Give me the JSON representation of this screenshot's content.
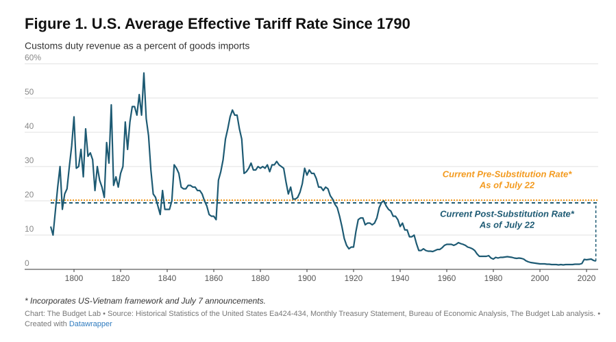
{
  "chart_data": {
    "type": "line",
    "title": "Figure 1. U.S. Average Effective Tariff Rate Since 1790",
    "subtitle": "Customs duty revenue as a percent of goods imports",
    "x": [
      1790,
      1791,
      1792,
      1793,
      1794,
      1795,
      1796,
      1797,
      1798,
      1799,
      1800,
      1801,
      1802,
      1803,
      1804,
      1805,
      1806,
      1807,
      1808,
      1809,
      1810,
      1811,
      1812,
      1813,
      1814,
      1815,
      1816,
      1817,
      1818,
      1819,
      1820,
      1821,
      1822,
      1823,
      1824,
      1825,
      1826,
      1827,
      1828,
      1829,
      1830,
      1831,
      1832,
      1833,
      1834,
      1835,
      1836,
      1837,
      1838,
      1839,
      1840,
      1841,
      1842,
      1843,
      1844,
      1845,
      1846,
      1847,
      1848,
      1849,
      1850,
      1851,
      1852,
      1853,
      1854,
      1855,
      1856,
      1857,
      1858,
      1859,
      1860,
      1861,
      1862,
      1863,
      1864,
      1865,
      1866,
      1867,
      1868,
      1869,
      1870,
      1871,
      1872,
      1873,
      1874,
      1875,
      1876,
      1877,
      1878,
      1879,
      1880,
      1881,
      1882,
      1883,
      1884,
      1885,
      1886,
      1887,
      1888,
      1889,
      1890,
      1891,
      1892,
      1893,
      1894,
      1895,
      1896,
      1897,
      1898,
      1899,
      1900,
      1901,
      1902,
      1903,
      1904,
      1905,
      1906,
      1907,
      1908,
      1909,
      1910,
      1911,
      1912,
      1913,
      1914,
      1915,
      1916,
      1917,
      1918,
      1919,
      1920,
      1921,
      1922,
      1923,
      1924,
      1925,
      1926,
      1927,
      1928,
      1929,
      1930,
      1931,
      1932,
      1933,
      1934,
      1935,
      1936,
      1937,
      1938,
      1939,
      1940,
      1941,
      1942,
      1943,
      1944,
      1945,
      1946,
      1947,
      1948,
      1949,
      1950,
      1951,
      1952,
      1953,
      1954,
      1955,
      1956,
      1957,
      1958,
      1959,
      1960,
      1961,
      1962,
      1963,
      1964,
      1965,
      1966,
      1967,
      1968,
      1969,
      1970,
      1971,
      1972,
      1973,
      1974,
      1975,
      1976,
      1977,
      1978,
      1979,
      1980,
      1981,
      1982,
      1983,
      1984,
      1985,
      1986,
      1987,
      1988,
      1989,
      1990,
      1991,
      1992,
      1993,
      1994,
      1995,
      1996,
      1997,
      1998,
      1999,
      2000,
      2001,
      2002,
      2003,
      2004,
      2005,
      2006,
      2007,
      2008,
      2009,
      2010,
      2011,
      2012,
      2013,
      2014,
      2015,
      2016,
      2017,
      2018,
      2019,
      2020,
      2021,
      2022,
      2023,
      2024
    ],
    "values": [
      12.5,
      10,
      17,
      24,
      30,
      17.5,
      22,
      23.5,
      30,
      36,
      44.5,
      29.5,
      30,
      35,
      27,
      41,
      33,
      34,
      32,
      23,
      30,
      26,
      24,
      21,
      37,
      31,
      48,
      24.5,
      27,
      24,
      28,
      30,
      43,
      35,
      43,
      47.5,
      47.5,
      45,
      51,
      45,
      57.3,
      44,
      39,
      29,
      22,
      21,
      18.5,
      16,
      23,
      17.5,
      17.5,
      17.5,
      20,
      30.5,
      29.5,
      28,
      24,
      23.5,
      23.5,
      24.5,
      24.5,
      24,
      24,
      23,
      23,
      22,
      20,
      18.5,
      16,
      15.5,
      15.5,
      14.5,
      26,
      28.5,
      32,
      38,
      41,
      44.5,
      46.5,
      45,
      45,
      41,
      38,
      28,
      28.5,
      29.5,
      31,
      29,
      29,
      30,
      29.5,
      30,
      29.5,
      30.5,
      28.5,
      30.5,
      30.5,
      31.5,
      30.5,
      30,
      29.5,
      25.5,
      22,
      24,
      20.5,
      20.5,
      21,
      22.5,
      25,
      29.5,
      27.5,
      29,
      28,
      28,
      26.5,
      24,
      24,
      23,
      24,
      23.5,
      21.5,
      20.5,
      19,
      18,
      15.5,
      12.5,
      9,
      7,
      6,
      6.5,
      6.5,
      11,
      14.5,
      15,
      15,
      13,
      13.5,
      13.5,
      13,
      13.5,
      15,
      18,
      19.5,
      20,
      18.5,
      17.5,
      17,
      15.5,
      15.5,
      14.5,
      12.5,
      13.5,
      11.5,
      11.5,
      9.5,
      9.5,
      10,
      7.5,
      5.5,
      5.5,
      6,
      5.5,
      5.3,
      5.3,
      5.2,
      5.5,
      5.8,
      5.8,
      6.3,
      7,
      7.3,
      7.3,
      7.3,
      7,
      7.3,
      7.8,
      7.5,
      7.3,
      7,
      6.5,
      6.3,
      6,
      5.5,
      4.5,
      3.8,
      3.8,
      3.8,
      3.8,
      4,
      3.3,
      3,
      3.5,
      3.3,
      3.5,
      3.5,
      3.6,
      3.7,
      3.6,
      3.5,
      3.3,
      3.2,
      3.3,
      3.2,
      3,
      2.5,
      2.2,
      2,
      1.9,
      1.8,
      1.7,
      1.6,
      1.6,
      1.6,
      1.5,
      1.5,
      1.4,
      1.4,
      1.4,
      1.3,
      1.4,
      1.3,
      1.4,
      1.4,
      1.4,
      1.4,
      1.5,
      1.5,
      1.5,
      1.7,
      2.9,
      2.8,
      2.9,
      3,
      2.6,
      2.4
    ],
    "color": "#1d5a73",
    "xlim": [
      1790,
      2025
    ],
    "ylim": [
      0,
      60
    ],
    "xticks": [
      1800,
      1820,
      1840,
      1860,
      1880,
      1900,
      1920,
      1940,
      1960,
      1980,
      2000,
      2020
    ],
    "yticks": [
      0,
      10,
      20,
      30,
      40,
      50,
      {
        "value": 60,
        "label": "60%"
      }
    ],
    "grid": true,
    "reference_lines": [
      {
        "label": "Current Pre-Substitution Rate*",
        "sublabel": "As of July 22",
        "value": 20.2,
        "color": "#f39a1e",
        "style": "dotted"
      },
      {
        "label": "Current Post-Substitution Rate*",
        "sublabel": "As of July 22",
        "value": 19.4,
        "color": "#1d5a73",
        "style": "dashed"
      }
    ],
    "footnote": "* Incorporates US-Vietnam framework and July 7 announcements.",
    "source": "Chart: The Budget Lab • Source: Historical Statistics of the United States Ea424-434, Monthly Treasury Statement, Bureau of Economic Analysis, The Budget Lab analysis. •",
    "created_with": "Created with",
    "credit": "Datawrapper"
  }
}
